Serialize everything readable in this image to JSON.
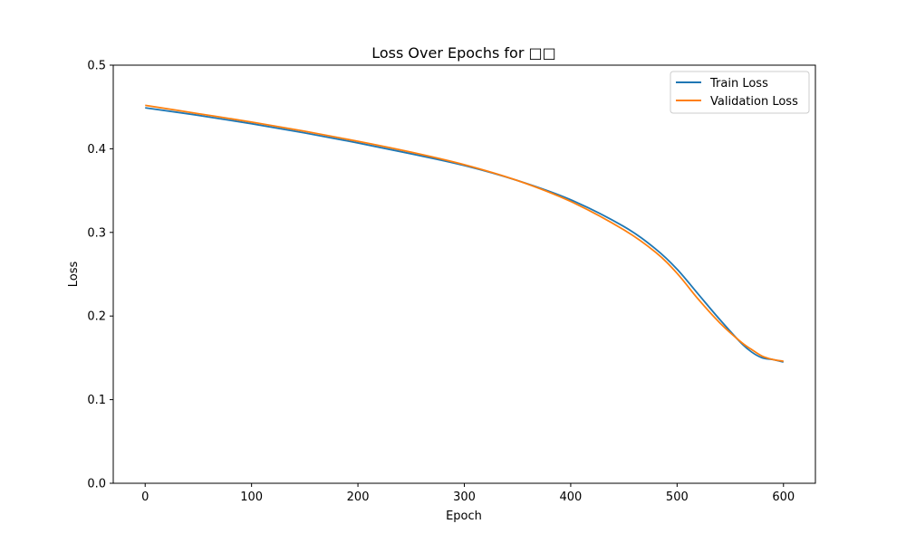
{
  "chart_data": {
    "type": "line",
    "title": "Loss Over Epochs for □□",
    "xlabel": "Epoch",
    "ylabel": "Loss",
    "xlim": [
      -30,
      630
    ],
    "ylim": [
      0.0,
      0.5
    ],
    "xticks": [
      0,
      100,
      200,
      300,
      400,
      500,
      600
    ],
    "yticks": [
      0.0,
      0.1,
      0.2,
      0.3,
      0.4,
      0.5
    ],
    "xtick_labels": [
      "0",
      "100",
      "200",
      "300",
      "400",
      "500",
      "600"
    ],
    "ytick_labels": [
      "0.0",
      "0.1",
      "0.2",
      "0.3",
      "0.4",
      "0.5"
    ],
    "grid": false,
    "legend": "top-right",
    "x": [
      0,
      50,
      100,
      150,
      200,
      250,
      300,
      350,
      400,
      450,
      480,
      500,
      520,
      540,
      560,
      570,
      580,
      590,
      600
    ],
    "series": [
      {
        "name": "Train Loss",
        "color": "#1f77b4",
        "values": [
          0.449,
          0.44,
          0.43,
          0.419,
          0.407,
          0.394,
          0.38,
          0.362,
          0.339,
          0.307,
          0.28,
          0.256,
          0.226,
          0.196,
          0.168,
          0.157,
          0.15,
          0.148,
          0.145
        ]
      },
      {
        "name": "Validation Loss",
        "color": "#ff7f0e",
        "values": [
          0.452,
          0.442,
          0.432,
          0.421,
          0.409,
          0.396,
          0.381,
          0.362,
          0.337,
          0.303,
          0.276,
          0.251,
          0.22,
          0.192,
          0.169,
          0.16,
          0.152,
          0.148,
          0.146
        ]
      }
    ]
  }
}
